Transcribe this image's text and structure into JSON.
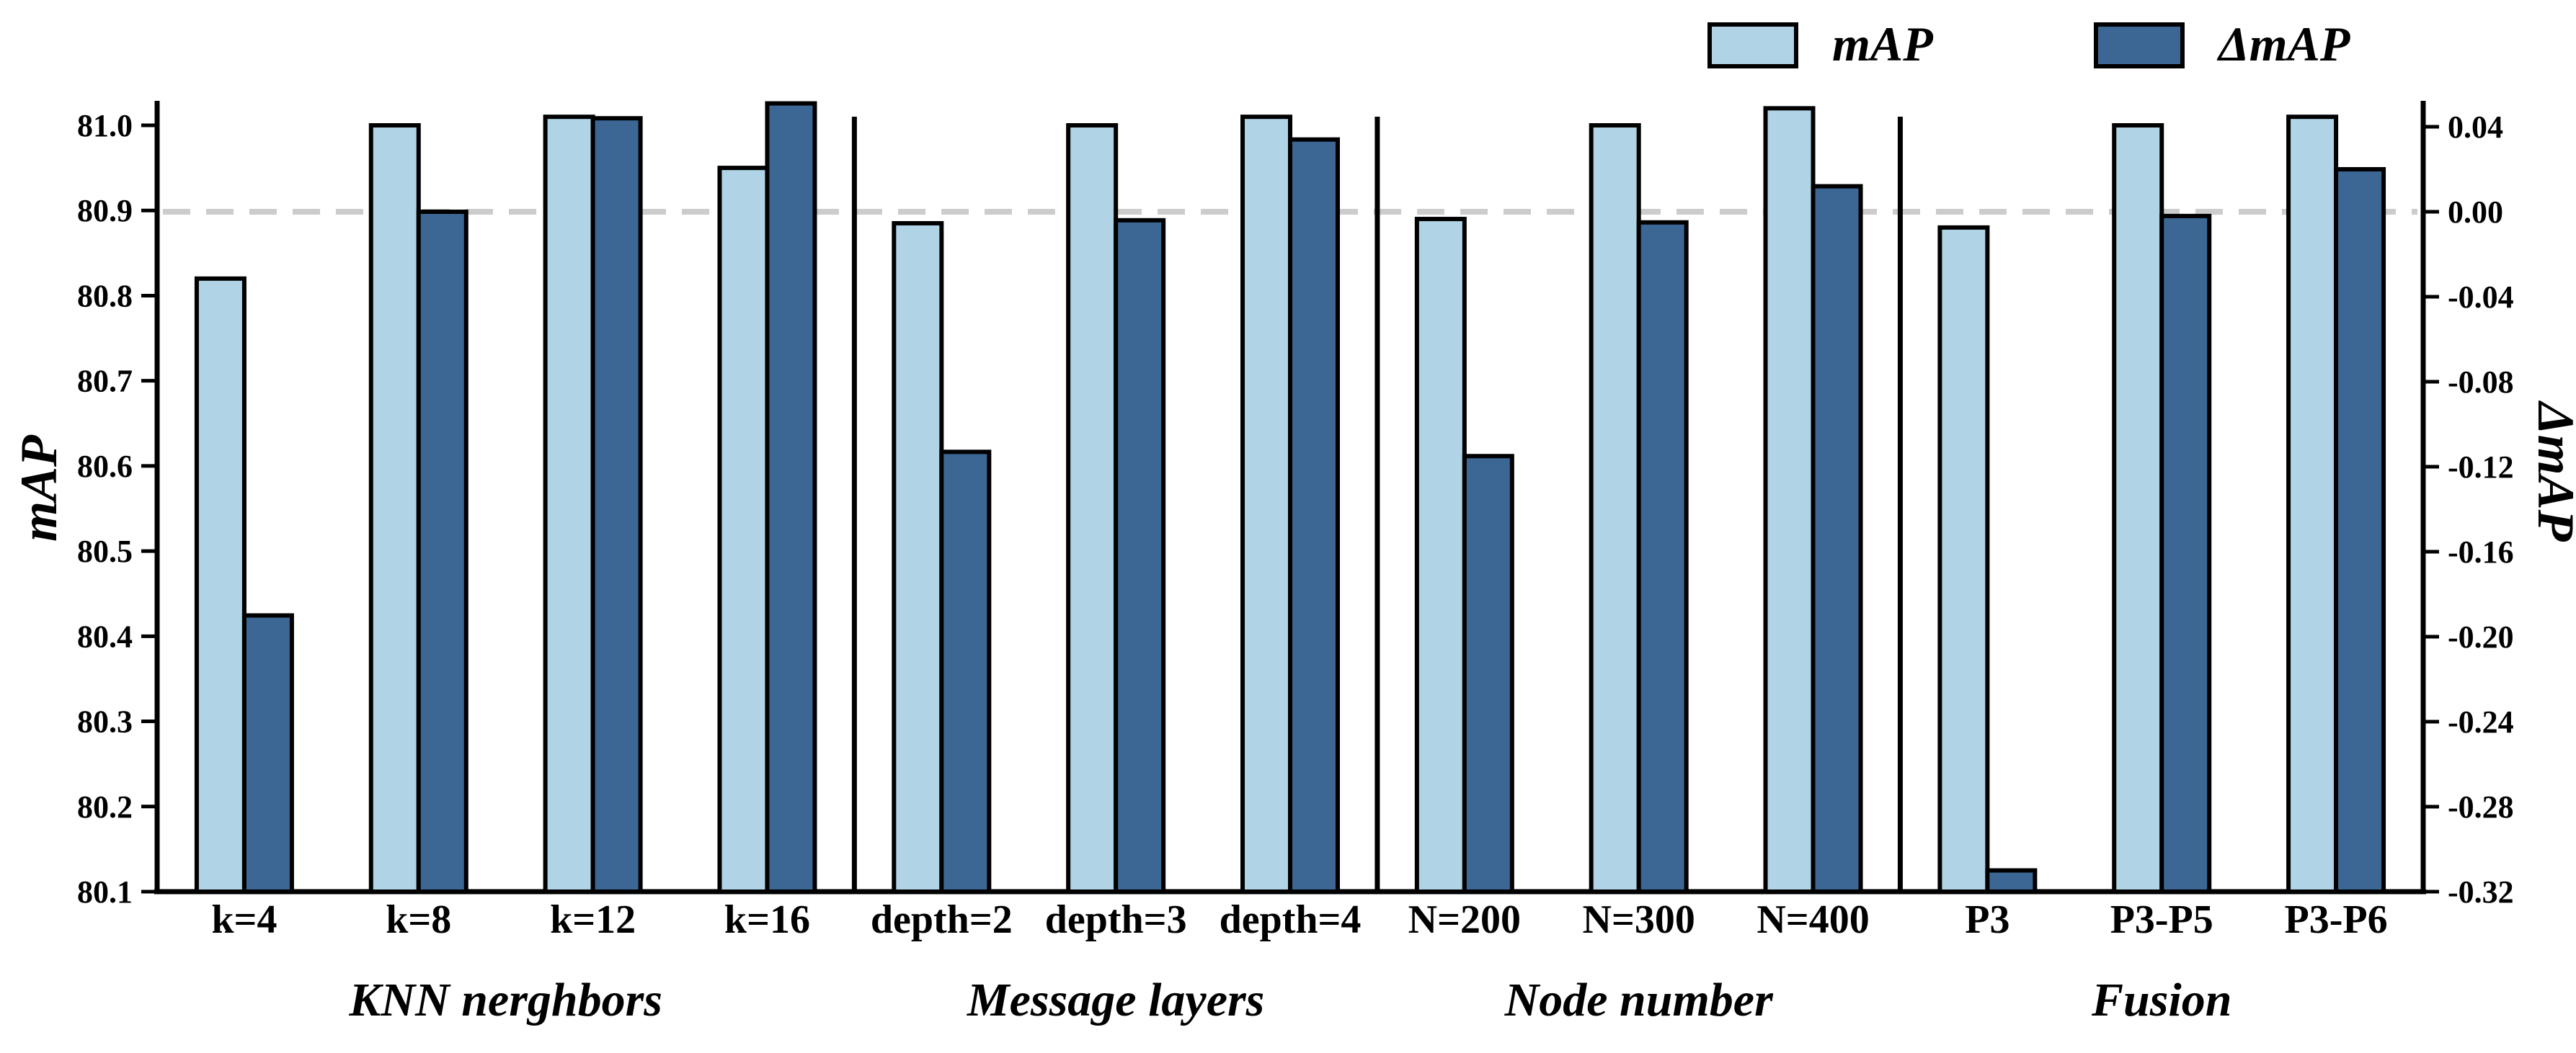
{
  "chart_data": {
    "type": "bar",
    "categories": [
      "k=4",
      "k=8",
      "k=12",
      "k=16",
      "depth=2",
      "depth=3",
      "depth=4",
      "N=200",
      "N=300",
      "N=400",
      "P3",
      "P3-P5",
      "P3-P6"
    ],
    "groups": [
      {
        "label": "KNN nerghbors",
        "categories": [
          "k=4",
          "k=8",
          "k=12",
          "k=16"
        ]
      },
      {
        "label": "Message layers",
        "categories": [
          "depth=2",
          "depth=3",
          "depth=4"
        ]
      },
      {
        "label": "Node number",
        "categories": [
          "N=200",
          "N=300",
          "N=400"
        ]
      },
      {
        "label": "Fusion",
        "categories": [
          "P3",
          "P3-P5",
          "P3-P6"
        ]
      }
    ],
    "series": [
      {
        "name": "mAP",
        "axis": "left",
        "color": "#b0d4e6",
        "values": [
          80.82,
          81.0,
          81.01,
          80.95,
          80.885,
          81.0,
          81.01,
          80.89,
          81.0,
          81.02,
          80.88,
          81.0,
          81.01
        ]
      },
      {
        "name": "ΔmAP",
        "axis": "right",
        "color": "#3c6795",
        "values": [
          -0.19,
          0.0,
          0.044,
          0.051,
          -0.113,
          -0.004,
          0.034,
          -0.115,
          -0.005,
          0.012,
          -0.31,
          -0.002,
          0.02
        ]
      }
    ],
    "ylabel": "mAP",
    "ylabel_right": "ΔmAP",
    "ylim": [
      80.1,
      81.0
    ],
    "ylim_right": [
      -0.32,
      0.04
    ],
    "yticks": [
      "80.1",
      "80.2",
      "80.3",
      "80.4",
      "80.5",
      "80.6",
      "80.7",
      "80.8",
      "80.9",
      "81.0"
    ],
    "yticks_right": [
      "-0.32",
      "-0.28",
      "-0.24",
      "-0.20",
      "-0.16",
      "-0.12",
      "-0.08",
      "-0.04",
      "0.00",
      "0.04"
    ],
    "reference_line": {
      "axis": "right",
      "value": 0.0,
      "style": "dashed",
      "color": "#cccccc"
    },
    "legend_position": "top-right",
    "grid": false
  }
}
